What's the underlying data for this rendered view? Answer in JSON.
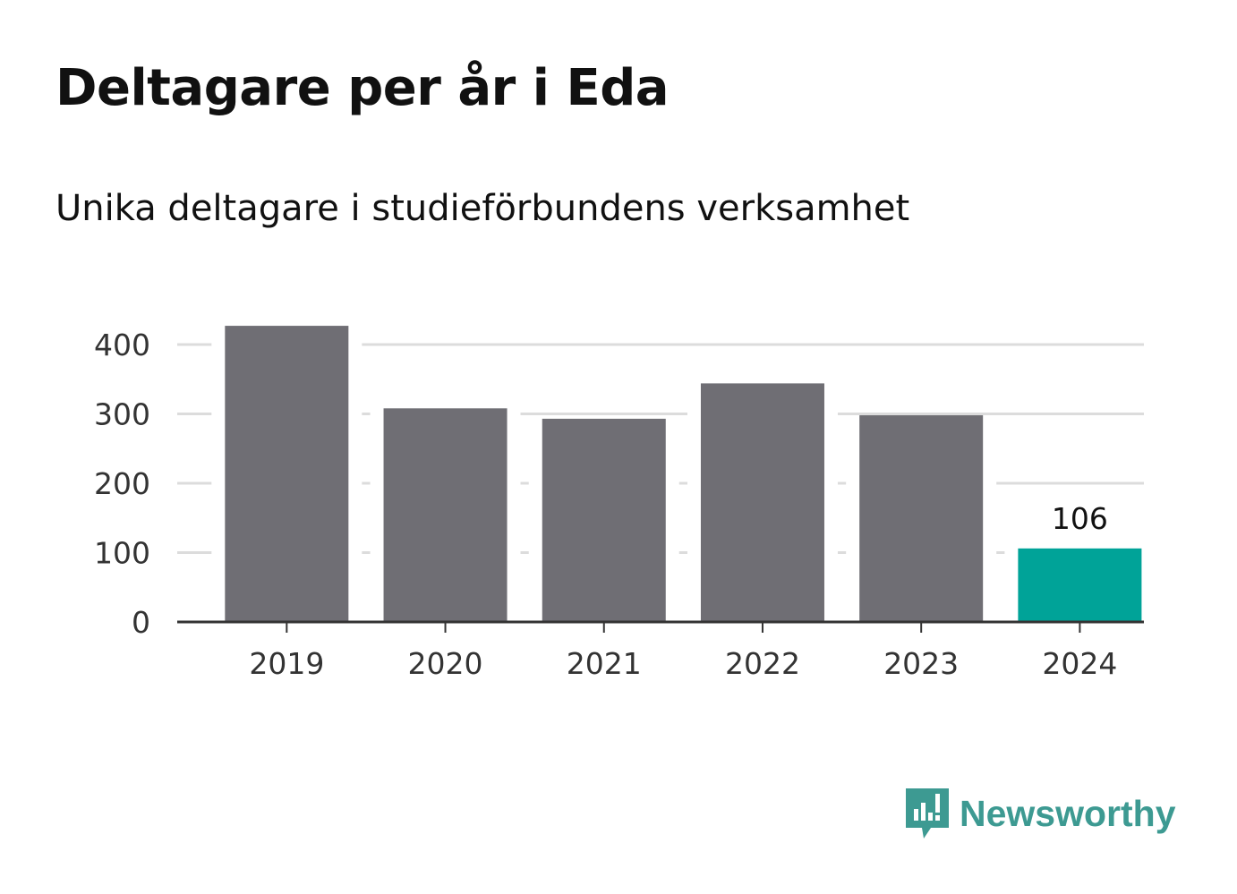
{
  "title": "Deltagare per år i Eda",
  "subtitle": "Unika deltagare i studieförbundens verksamhet",
  "brand": {
    "name": "Newsworthy",
    "icon": "newsworthy-logo-icon",
    "color": "#3d9a92"
  },
  "colors": {
    "bar": "#6f6e74",
    "highlight": "#00a398",
    "grid": "#dcdcdc",
    "axis": "#333333"
  },
  "chart_data": {
    "type": "bar",
    "categories": [
      "2019",
      "2020",
      "2021",
      "2022",
      "2023",
      "2024"
    ],
    "values": [
      427,
      308,
      293,
      344,
      298,
      106
    ],
    "highlight_index": 5,
    "data_labels": [
      "",
      "",
      "",
      "",
      "",
      "106"
    ],
    "y_ticks": [
      "0",
      "100",
      "200",
      "300",
      "400"
    ],
    "ylim": [
      0,
      400
    ],
    "grid": true,
    "legend": "none",
    "title": "Deltagare per år i Eda",
    "subtitle": "Unika deltagare i studieförbundens verksamhet"
  }
}
